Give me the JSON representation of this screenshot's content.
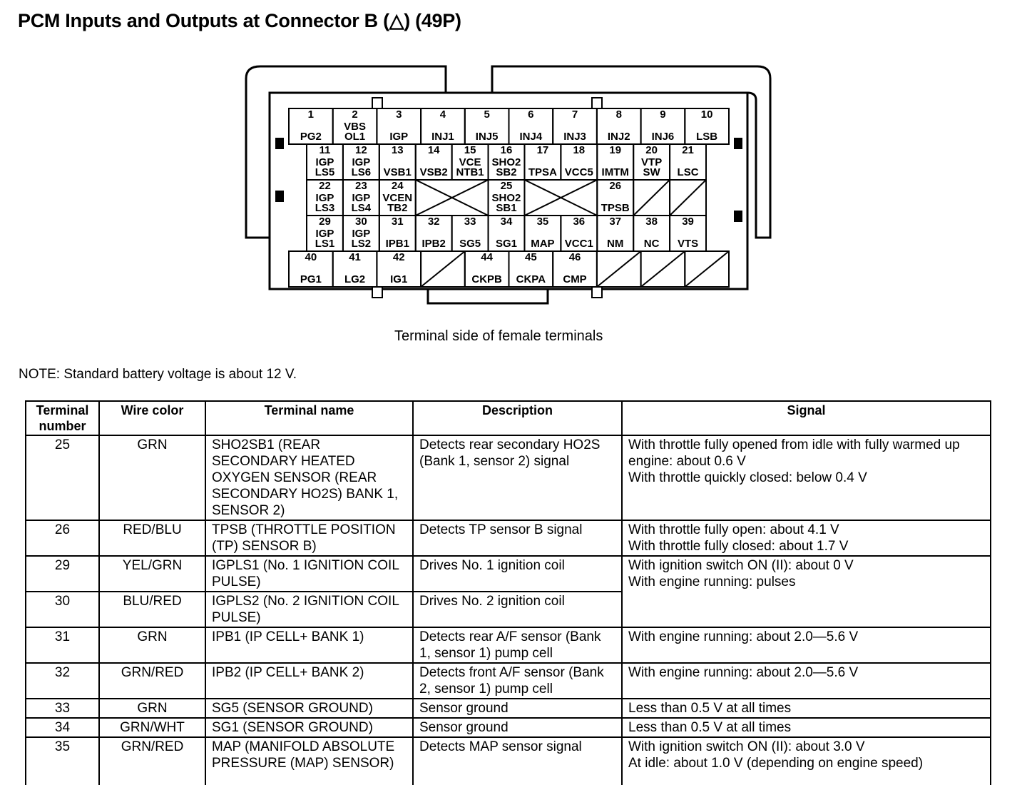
{
  "title": "PCM Inputs and Outputs at Connector B (△) (49P)",
  "caption": "Terminal side of female terminals",
  "note": "NOTE: Standard battery voltage is about 12 V.",
  "connector": {
    "rows": [
      [
        {
          "n": "1",
          "l": "PG2"
        },
        {
          "n": "2",
          "l": "VBS\nOL1"
        },
        {
          "n": "3",
          "l": "IGP"
        },
        {
          "n": "4",
          "l": "INJ1"
        },
        {
          "n": "5",
          "l": "INJ5"
        },
        {
          "n": "6",
          "l": "INJ4"
        },
        {
          "n": "7",
          "l": "INJ3"
        },
        {
          "n": "8",
          "l": "INJ2"
        },
        {
          "n": "9",
          "l": "INJ6"
        },
        {
          "n": "10",
          "l": "LSB"
        }
      ],
      [
        {
          "n": "11",
          "l": "IGP\nLS5"
        },
        {
          "n": "12",
          "l": "IGP\nLS6"
        },
        {
          "n": "13",
          "l": "VSB1"
        },
        {
          "n": "14",
          "l": "VSB2"
        },
        {
          "n": "15",
          "l": "VCE\nNTB1"
        },
        {
          "n": "16",
          "l": "SHO2\nSB2"
        },
        {
          "n": "17",
          "l": "TPSA"
        },
        {
          "n": "18",
          "l": "VCC5"
        },
        {
          "n": "19",
          "l": "IMTM"
        },
        {
          "n": "20",
          "l": "VTP\nSW"
        },
        {
          "n": "21",
          "l": "LSC"
        }
      ],
      [
        {
          "n": "22",
          "l": "IGP\nLS3"
        },
        {
          "n": "23",
          "l": "IGP\nLS4"
        },
        {
          "n": "24",
          "l": "VCEN\nTB2"
        },
        {
          "x": 2
        },
        {
          "n": "25",
          "l": "SHO2\nSB1"
        },
        {
          "x": 2
        },
        {
          "n": "26",
          "l": "TPSB"
        },
        {
          "s": 1
        },
        {
          "s": 1
        }
      ],
      [
        {
          "n": "29",
          "l": "IGP\nLS1"
        },
        {
          "n": "30",
          "l": "IGP\nLS2"
        },
        {
          "n": "31",
          "l": "IPB1"
        },
        {
          "n": "32",
          "l": "IPB2"
        },
        {
          "n": "33",
          "l": "SG5"
        },
        {
          "n": "34",
          "l": "SG1"
        },
        {
          "n": "35",
          "l": "MAP"
        },
        {
          "n": "36",
          "l": "VCC1"
        },
        {
          "n": "37",
          "l": "NM"
        },
        {
          "n": "38",
          "l": "NC"
        },
        {
          "n": "39",
          "l": "VTS"
        }
      ],
      [
        {
          "n": "40",
          "l": "PG1"
        },
        {
          "n": "41",
          "l": "LG2"
        },
        {
          "n": "42",
          "l": "IG1"
        },
        {
          "s": 1
        },
        {
          "n": "44",
          "l": "CKPB"
        },
        {
          "n": "45",
          "l": "CKPA"
        },
        {
          "n": "46",
          "l": "CMP"
        },
        {
          "s": 1
        },
        {
          "s": 1
        },
        {
          "s": 1
        }
      ]
    ]
  },
  "table": {
    "headers": [
      "Terminal number",
      "Wire color",
      "Terminal name",
      "Description",
      "Signal"
    ],
    "rows": [
      {
        "terminal": "25",
        "wire": "GRN",
        "name": "SHO2SB1 (REAR SECONDARY HEATED OXYGEN SENSOR (REAR SECONDARY HO2S) BANK 1, SENSOR 2)",
        "description": "Detects rear secondary HO2S (Bank 1, sensor 2) signal",
        "signal": "With throttle fully opened from idle with fully warmed up engine: about 0.6 V\nWith throttle quickly closed: below 0.4 V"
      },
      {
        "terminal": "26",
        "wire": "RED/BLU",
        "name": "TPSB (THROTTLE POSITION (TP) SENSOR B)",
        "description": "Detects TP sensor B signal",
        "signal": "With throttle fully open: about 4.1 V\nWith throttle fully closed: about 1.7 V"
      },
      {
        "terminal": "29",
        "wire": "YEL/GRN",
        "name": "IGPLS1 (No. 1 IGNITION COIL PULSE)",
        "description": "Drives No. 1 ignition coil",
        "signal": "With ignition switch ON (II): about 0 V\nWith engine running: pulses"
      },
      {
        "terminal": "30",
        "wire": "BLU/RED",
        "name": "IGPLS2 (No. 2 IGNITION COIL PULSE)",
        "description": "Drives No. 2 ignition coil",
        "signal": ""
      },
      {
        "terminal": "31",
        "wire": "GRN",
        "name": "IPB1 (IP CELL+ BANK 1)",
        "description": "Detects rear A/F sensor (Bank 1, sensor 1) pump cell",
        "signal": "With engine running: about 2.0—5.6 V"
      },
      {
        "terminal": "32",
        "wire": "GRN/RED",
        "name": "IPB2 (IP CELL+ BANK 2)",
        "description": "Detects front A/F sensor (Bank 2, sensor 1) pump cell",
        "signal": "With engine running: about 2.0—5.6 V"
      },
      {
        "terminal": "33",
        "wire": "GRN",
        "name": "SG5 (SENSOR GROUND)",
        "description": "Sensor ground",
        "signal": "Less than 0.5 V at all times"
      },
      {
        "terminal": "34",
        "wire": "GRN/WHT",
        "name": "SG1 (SENSOR GROUND)",
        "description": "Sensor ground",
        "signal": "Less than 0.5 V at all times"
      },
      {
        "terminal": "35",
        "wire": "GRN/RED",
        "name": "MAP (MANIFOLD ABSOLUTE PRESSURE (MAP) SENSOR)",
        "description": "Detects MAP sensor signal",
        "signal": "With ignition switch ON (II): about 3.0 V\nAt idle: about 1.0 V (depending on engine speed)"
      }
    ]
  }
}
